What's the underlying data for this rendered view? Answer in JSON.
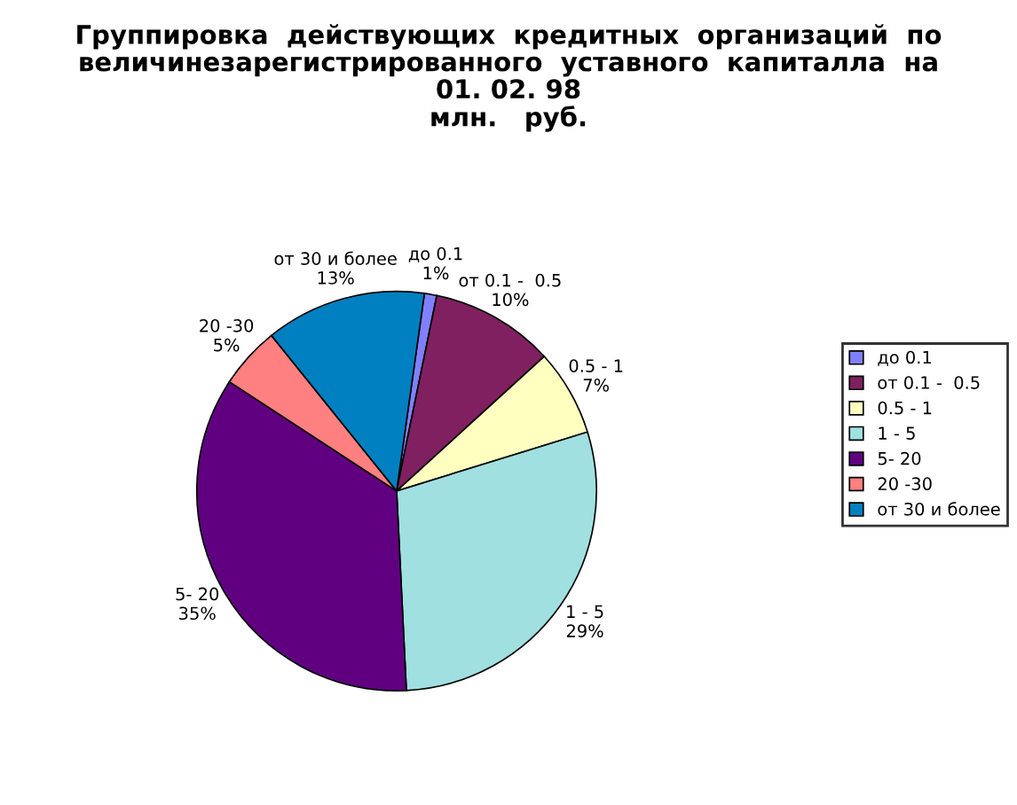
{
  "chart_data": {
    "type": "pie",
    "title": "Группировка  действующих  кредитных  организаций  по\nвеличинезарегистрированного  уставного  капиталла  на\n01. 02. 98\nмлн.   руб.",
    "categories": [
      "до 0.1",
      "от 0.1 -  0.5",
      "0.5 - 1",
      "1 - 5",
      "5- 20",
      "20 -30",
      "от 30 и более"
    ],
    "values": [
      1,
      10,
      7,
      29,
      35,
      5,
      13
    ],
    "value_labels": [
      "1%",
      "10%",
      "7%",
      "29%",
      "35%",
      "5%",
      "13%"
    ],
    "colors": [
      "#8080ff",
      "#802060",
      "#ffffc0",
      "#a0e0e0",
      "#600080",
      "#ff8080",
      "#0080c0"
    ],
    "legend": "right"
  }
}
